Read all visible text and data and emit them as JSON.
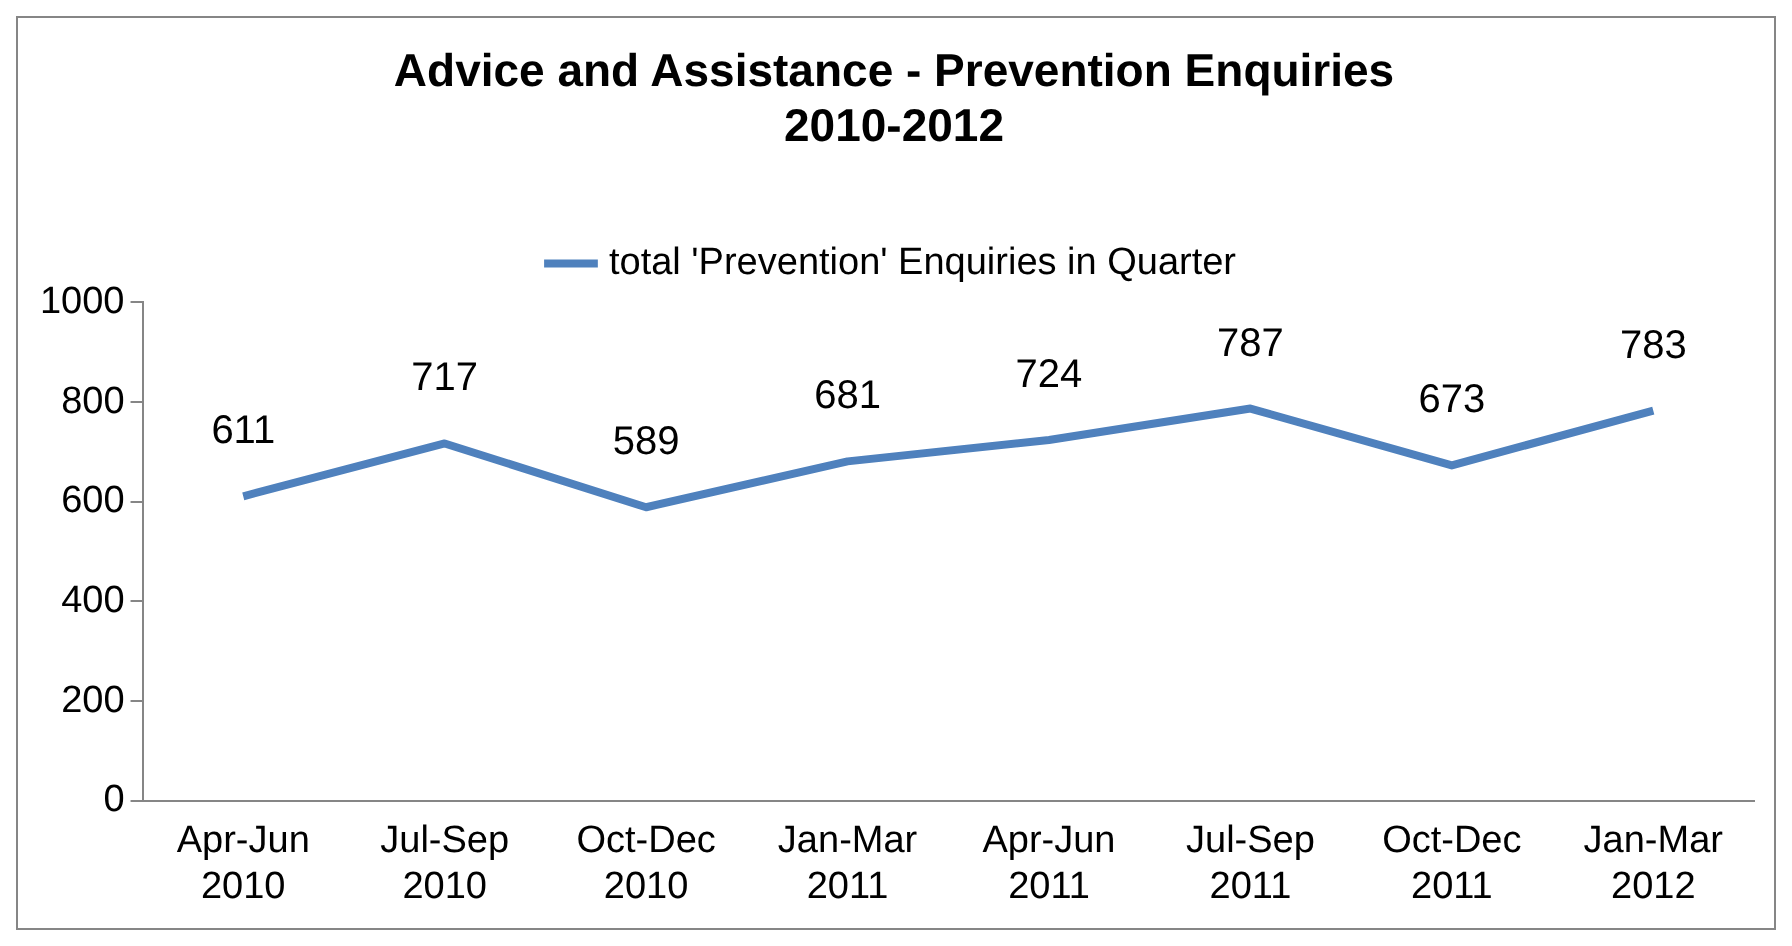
{
  "chart_data": {
    "type": "line",
    "title": "Advice and Assistance - Prevention Enquiries 2010-2012",
    "categories": [
      "Apr-Jun 2010",
      "Jul-Sep 2010",
      "Oct-Dec 2010",
      "Jan-Mar 2011",
      "Apr-Jun 2011",
      "Jul-Sep 2011",
      "Oct-Dec 2011",
      "Jan-Mar 2012"
    ],
    "series": [
      {
        "name": "total 'Prevention' Enquiries in Quarter",
        "color": "#4f81bd",
        "values": [
          611,
          717,
          589,
          681,
          724,
          787,
          673,
          783
        ]
      }
    ],
    "ylim": [
      0,
      1000
    ],
    "yticks": [
      0,
      200,
      400,
      600,
      800,
      1000
    ],
    "grid": false,
    "legend": "top",
    "marker": "none",
    "line_style": "solid",
    "data_labels": true
  }
}
